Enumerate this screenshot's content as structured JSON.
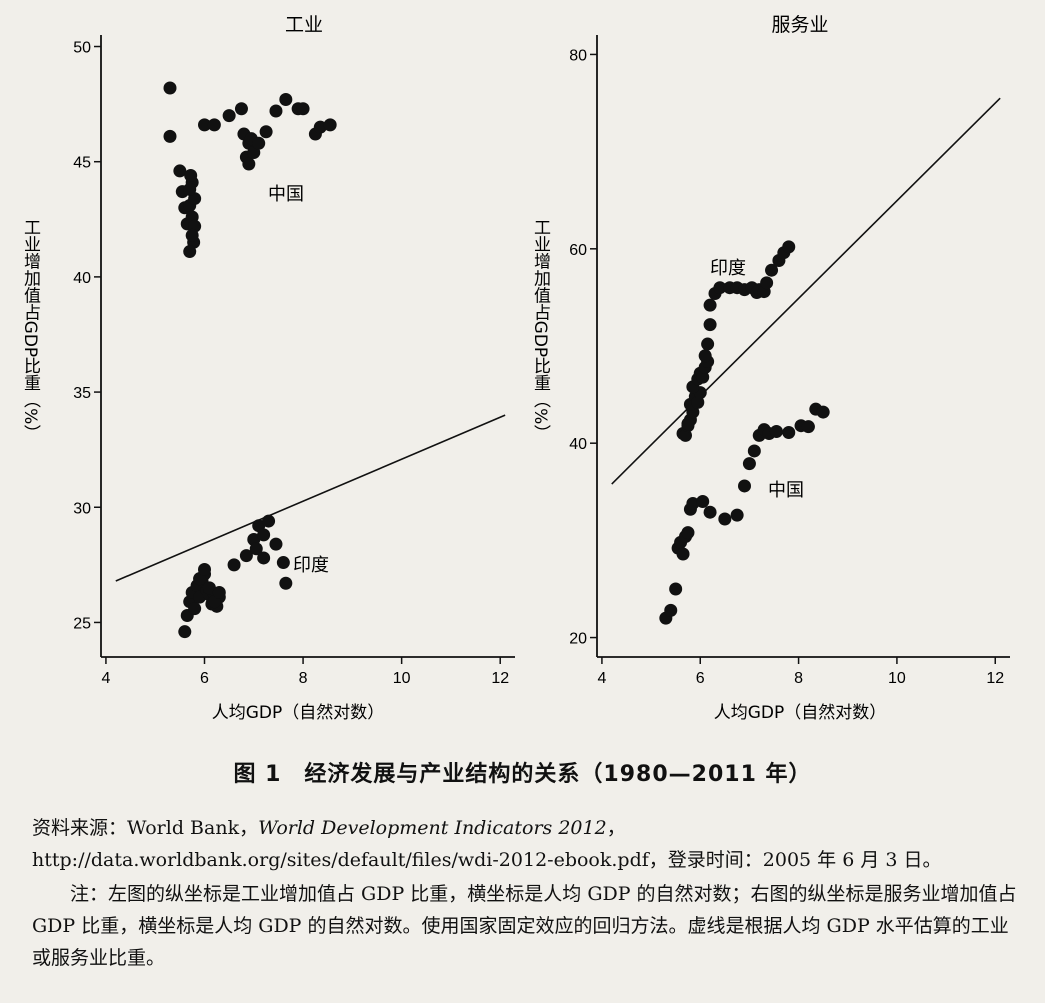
{
  "charts": [
    {
      "title": "工业",
      "y_axis_label": "工业增加值占GDP比重（%）",
      "x_axis_label": "人均GDP（自然对数）",
      "x_ticks": [
        "4",
        "6",
        "8",
        "10",
        "12"
      ],
      "y_ticks": [
        "25",
        "30",
        "35",
        "40",
        "45",
        "50"
      ],
      "annotations": {
        "upper": "中国",
        "lower": "印度"
      }
    },
    {
      "title": "服务业",
      "y_axis_label": "工业增加值占GDP比重（%）",
      "x_axis_label": "人均GDP（自然对数）",
      "x_ticks": [
        "4",
        "6",
        "8",
        "10",
        "12"
      ],
      "y_ticks": [
        "20",
        "40",
        "60",
        "80"
      ],
      "annotations": {
        "upper": "印度",
        "lower": "中国"
      }
    }
  ],
  "caption": "图 1　经济发展与产业结构的关系（1980—2011 年）",
  "source": {
    "prefix": "资料来源：World Bank，",
    "title": "World Development Indicators 2012",
    "suffix": "，http://data.worldbank.org/sites/default/files/wdi-2012-ebook.pdf，登录时间：2005 年 6 月 3 日。"
  },
  "note": "注：左图的纵坐标是工业增加值占 GDP 比重，横坐标是人均 GDP 的自然对数；右图的纵坐标是服务业增加值占 GDP 比重，横坐标是人均 GDP 的自然对数。使用国家固定效应的回归方法。虚线是根据人均 GDP 水平估算的工业或服务业比重。",
  "chart_data": [
    {
      "type": "scatter",
      "title": "工业",
      "xlabel": "人均GDP（自然对数）",
      "ylabel": "工业增加值占GDP比重（%）",
      "xlim": [
        3.9,
        12.3
      ],
      "ylim": [
        23.5,
        50.5
      ],
      "grid": false,
      "series": [
        {
          "name": "中国",
          "x": [
            5.3,
            5.3,
            5.5,
            5.55,
            5.6,
            5.65,
            5.7,
            5.75,
            5.8,
            5.78,
            5.7,
            5.75,
            5.8,
            5.75,
            5.7,
            5.72,
            6.0,
            6.2,
            6.5,
            6.75,
            6.8,
            6.9,
            6.95,
            6.85,
            6.9,
            7.0,
            7.1,
            7.25,
            7.45,
            7.65,
            7.9,
            8.0,
            8.25,
            8.35,
            8.55
          ],
          "y": [
            48.2,
            46.1,
            44.6,
            43.7,
            43.0,
            42.3,
            43.1,
            42.6,
            42.2,
            41.5,
            41.1,
            41.8,
            43.4,
            44.1,
            43.8,
            44.4,
            46.6,
            46.6,
            47.0,
            47.3,
            46.2,
            45.8,
            46.0,
            45.2,
            44.9,
            45.4,
            45.8,
            46.3,
            47.2,
            47.7,
            47.3,
            47.3,
            46.2,
            46.5,
            46.6
          ]
        },
        {
          "name": "印度",
          "x": [
            5.6,
            5.65,
            5.7,
            5.75,
            5.8,
            5.85,
            5.9,
            5.95,
            6.0,
            6.05,
            6.1,
            6.15,
            6.2,
            6.25,
            6.3,
            5.9,
            6.0,
            6.1,
            6.2,
            6.3,
            6.6,
            6.85,
            7.0,
            7.1,
            7.2,
            7.3,
            7.45,
            7.6,
            7.65,
            7.05,
            7.2
          ],
          "y": [
            24.6,
            25.3,
            25.9,
            26.3,
            25.6,
            26.6,
            26.1,
            26.8,
            27.1,
            26.4,
            26.2,
            25.8,
            26.2,
            25.7,
            26.1,
            26.9,
            27.3,
            26.5,
            25.9,
            26.3,
            27.5,
            27.9,
            28.6,
            29.2,
            28.8,
            29.4,
            28.4,
            27.6,
            26.7,
            28.2,
            27.8
          ]
        },
        {
          "name": "fit",
          "x": [
            4.2,
            12.1
          ],
          "y": [
            26.8,
            34.0
          ]
        }
      ]
    },
    {
      "type": "scatter",
      "title": "服务业",
      "xlabel": "人均GDP（自然对数）",
      "ylabel": "工业增加值占GDP比重（%）",
      "xlim": [
        3.9,
        12.3
      ],
      "ylim": [
        18,
        82
      ],
      "grid": false,
      "series": [
        {
          "name": "印度",
          "x": [
            5.65,
            5.7,
            5.75,
            5.8,
            5.85,
            5.75,
            5.8,
            5.9,
            5.95,
            6.0,
            5.85,
            5.95,
            6.0,
            6.05,
            6.1,
            6.15,
            6.1,
            6.15,
            6.2,
            6.2,
            6.3,
            6.4,
            6.6,
            6.75,
            6.9,
            7.05,
            7.15,
            7.2,
            7.3,
            7.35,
            7.45,
            7.6,
            7.7,
            7.8
          ],
          "y": [
            41.0,
            40.8,
            41.8,
            42.4,
            43.2,
            42.0,
            44.0,
            44.8,
            44.2,
            45.2,
            45.8,
            46.6,
            47.2,
            46.8,
            47.8,
            48.4,
            49.0,
            50.2,
            52.2,
            54.2,
            55.4,
            56.0,
            56.0,
            56.0,
            55.8,
            56.0,
            55.5,
            55.8,
            55.6,
            56.5,
            57.8,
            58.8,
            59.6,
            60.2
          ]
        },
        {
          "name": "中国",
          "x": [
            5.3,
            5.4,
            5.5,
            5.55,
            5.6,
            5.65,
            5.7,
            5.75,
            5.8,
            5.85,
            6.05,
            6.2,
            6.5,
            6.75,
            6.9,
            7.0,
            7.1,
            7.2,
            7.3,
            7.4,
            7.55,
            7.8,
            8.05,
            8.2,
            8.35,
            8.5
          ],
          "y": [
            22.0,
            22.8,
            25.0,
            29.2,
            29.8,
            28.6,
            30.4,
            30.8,
            33.2,
            33.8,
            34.0,
            32.9,
            32.2,
            32.6,
            35.6,
            37.9,
            39.2,
            40.8,
            41.4,
            41.0,
            41.2,
            41.1,
            41.8,
            41.7,
            43.5,
            43.2
          ]
        },
        {
          "name": "fit",
          "x": [
            4.2,
            12.1
          ],
          "y": [
            35.8,
            75.5
          ]
        }
      ]
    }
  ]
}
